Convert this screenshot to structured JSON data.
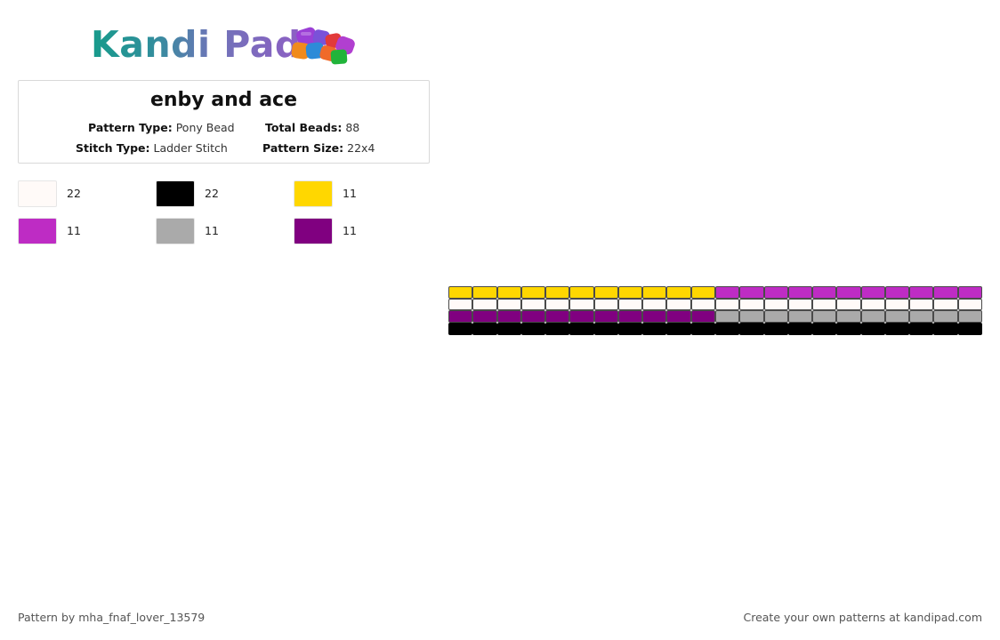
{
  "logo": {
    "text": "Kandi Pad",
    "icon": "bead-pile-icon"
  },
  "pattern": {
    "title": "enby and ace",
    "pattern_type_label": "Pattern Type:",
    "pattern_type_value": "Pony Bead",
    "total_beads_label": "Total Beads:",
    "total_beads_value": "88",
    "stitch_type_label": "Stitch Type:",
    "stitch_type_value": "Ladder Stitch",
    "pattern_size_label": "Pattern Size:",
    "pattern_size_value": "22x4"
  },
  "legend": [
    {
      "color": "#FFFAF8",
      "count": "22"
    },
    {
      "color": "#000000",
      "count": "22"
    },
    {
      "color": "#FFD700",
      "count": "11"
    },
    {
      "color": "#BE2CC4",
      "count": "11"
    },
    {
      "color": "#AAAAAA",
      "count": "11"
    },
    {
      "color": "#800080",
      "count": "11"
    }
  ],
  "grid": {
    "columns": 22,
    "rows": [
      {
        "colors": [
          "#FFD700",
          "#FFD700",
          "#FFD700",
          "#FFD700",
          "#FFD700",
          "#FFD700",
          "#FFD700",
          "#FFD700",
          "#FFD700",
          "#FFD700",
          "#FFD700",
          "#BE2CC4",
          "#BE2CC4",
          "#BE2CC4",
          "#BE2CC4",
          "#BE2CC4",
          "#BE2CC4",
          "#BE2CC4",
          "#BE2CC4",
          "#BE2CC4",
          "#BE2CC4",
          "#BE2CC4"
        ]
      },
      {
        "colors": [
          "#FFFAF8",
          "#FFFAF8",
          "#FFFAF8",
          "#FFFAF8",
          "#FFFAF8",
          "#FFFAF8",
          "#FFFAF8",
          "#FFFAF8",
          "#FFFAF8",
          "#FFFAF8",
          "#FFFAF8",
          "#FFFAF8",
          "#FFFAF8",
          "#FFFAF8",
          "#FFFAF8",
          "#FFFAF8",
          "#FFFAF8",
          "#FFFAF8",
          "#FFFAF8",
          "#FFFAF8",
          "#FFFAF8",
          "#FFFAF8"
        ]
      },
      {
        "colors": [
          "#800080",
          "#800080",
          "#800080",
          "#800080",
          "#800080",
          "#800080",
          "#800080",
          "#800080",
          "#800080",
          "#800080",
          "#800080",
          "#AAAAAA",
          "#AAAAAA",
          "#AAAAAA",
          "#AAAAAA",
          "#AAAAAA",
          "#AAAAAA",
          "#AAAAAA",
          "#AAAAAA",
          "#AAAAAA",
          "#AAAAAA",
          "#AAAAAA"
        ]
      },
      {
        "colors": [
          "#000000",
          "#000000",
          "#000000",
          "#000000",
          "#000000",
          "#000000",
          "#000000",
          "#000000",
          "#000000",
          "#000000",
          "#000000",
          "#000000",
          "#000000",
          "#000000",
          "#000000",
          "#000000",
          "#000000",
          "#000000",
          "#000000",
          "#000000",
          "#000000",
          "#000000"
        ]
      }
    ]
  },
  "footer": {
    "author_text": "Pattern by mha_fnaf_lover_13579",
    "promo_text": "Create your own patterns at kandipad.com"
  }
}
